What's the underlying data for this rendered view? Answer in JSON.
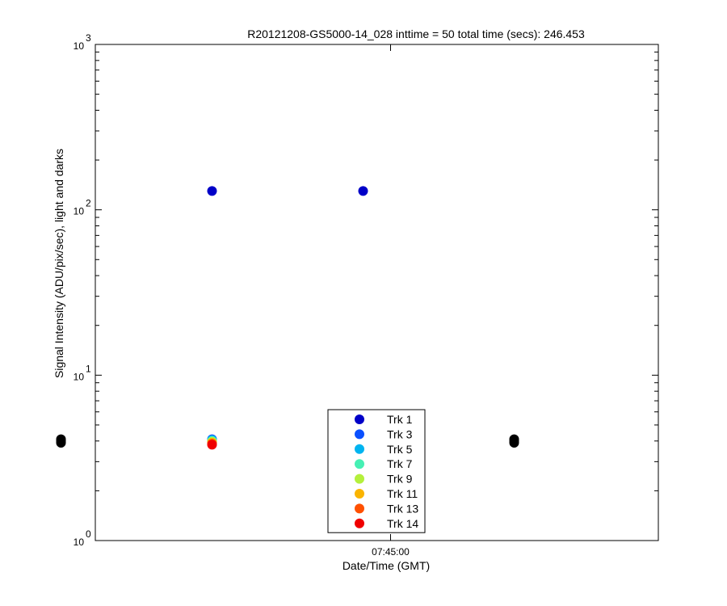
{
  "chart_data": {
    "type": "scatter",
    "title": "R20121208-GS5000-14_028 inttime = 50 total time (secs): 246.453",
    "xlabel": "Date/Time (GMT)",
    "ylabel": "Signal Intensity (ADU/pix/sec), light and darks",
    "yscale": "log",
    "ylim": [
      1,
      1000
    ],
    "xlim": [
      "07:44:17",
      "07:45:39"
    ],
    "x_ticks": [
      {
        "value": "07:45:00",
        "label": "07:45:00"
      }
    ],
    "y_ticks": [
      {
        "value": 1,
        "base": "10",
        "exp": "0"
      },
      {
        "value": 10,
        "base": "10",
        "exp": "1"
      },
      {
        "value": 100,
        "base": "10",
        "exp": "2"
      },
      {
        "value": 1000,
        "base": "10",
        "exp": "3"
      }
    ],
    "grid": false,
    "legend_position": "bottom-center",
    "series": [
      {
        "name": "Trk 1",
        "color": "#0000c8",
        "points": [
          {
            "x": "07:44:34",
            "y": 130
          },
          {
            "x": "07:44:56",
            "y": 130
          }
        ]
      },
      {
        "name": "Trk 3",
        "color": "#0a50ff",
        "points": [
          {
            "x": "07:44:34",
            "y": 4.1
          },
          {
            "x": "07:44:56",
            "y": 4.1
          }
        ]
      },
      {
        "name": "Trk 5",
        "color": "#00b4f0",
        "points": [
          {
            "x": "07:44:34",
            "y": 4.05
          },
          {
            "x": "07:44:56",
            "y": 4.05
          }
        ]
      },
      {
        "name": "Trk 7",
        "color": "#46f0b4",
        "points": [
          {
            "x": "07:44:34",
            "y": 4.0
          },
          {
            "x": "07:44:56",
            "y": 4.0
          }
        ]
      },
      {
        "name": "Trk 9",
        "color": "#b4f03c",
        "points": [
          {
            "x": "07:44:34",
            "y": 3.95
          },
          {
            "x": "07:44:56",
            "y": 3.95
          }
        ]
      },
      {
        "name": "Trk 11",
        "color": "#fab400",
        "points": [
          {
            "x": "07:44:34",
            "y": 3.9
          },
          {
            "x": "07:44:56",
            "y": 3.9
          }
        ]
      },
      {
        "name": "Trk 13",
        "color": "#ff5000",
        "points": [
          {
            "x": "07:44:34",
            "y": 3.85
          },
          {
            "x": "07:44:56",
            "y": 3.85
          }
        ]
      },
      {
        "name": "Trk 14",
        "color": "#f00000",
        "points": [
          {
            "x": "07:44:34",
            "y": 3.8
          },
          {
            "x": "07:44:56",
            "y": 3.8
          }
        ]
      }
    ],
    "dark_points": {
      "color": "#000000",
      "points": [
        {
          "x": "07:44:12",
          "y": 4.1
        },
        {
          "x": "07:44:12",
          "y": 4.0
        },
        {
          "x": "07:44:12",
          "y": 3.9
        },
        {
          "x": "07:45:18",
          "y": 4.1
        },
        {
          "x": "07:45:18",
          "y": 4.0
        },
        {
          "x": "07:45:18",
          "y": 3.9
        }
      ]
    }
  }
}
